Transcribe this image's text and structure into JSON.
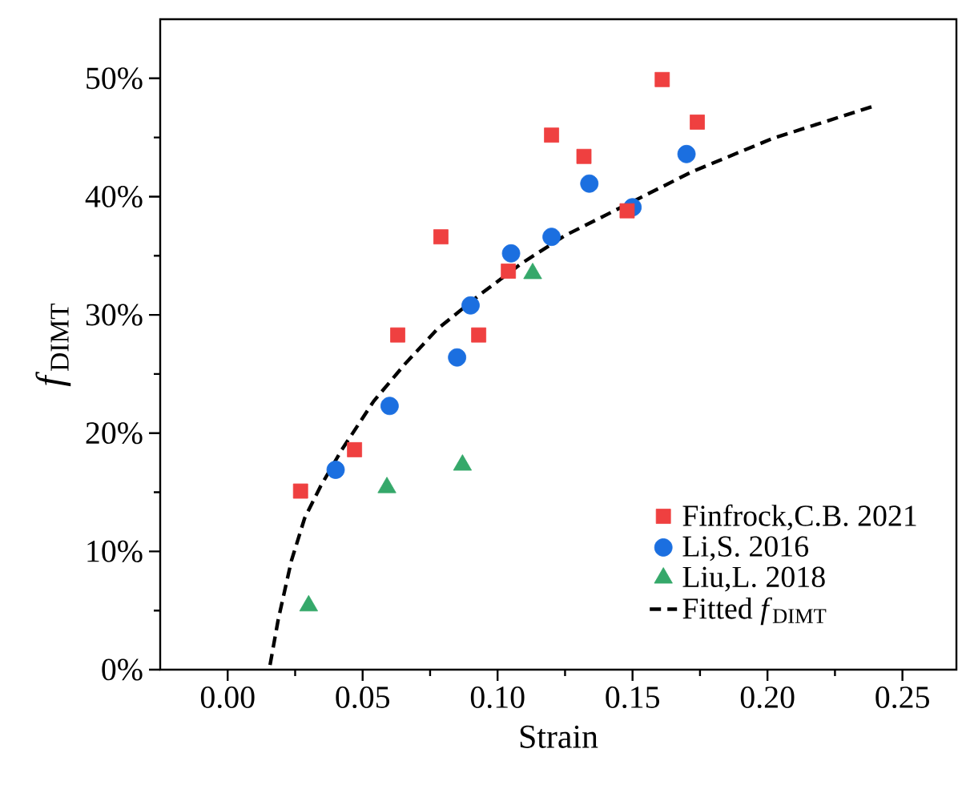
{
  "chart_data": {
    "type": "scatter",
    "xlabel": "Strain",
    "ylabel": "*f*$_{DIMT}$",
    "xlim": [
      -0.025,
      0.27
    ],
    "ylim": [
      0,
      55
    ],
    "xticks": [
      {
        "value": 0,
        "label": "0.00"
      },
      {
        "value": 0.025,
        "label": null
      },
      {
        "value": 0.05,
        "label": "0.05"
      },
      {
        "value": 0.075,
        "label": null
      },
      {
        "value": 0.1,
        "label": "0.10"
      },
      {
        "value": 0.125,
        "label": null
      },
      {
        "value": 0.15,
        "label": "0.15"
      },
      {
        "value": 0.175,
        "label": null
      },
      {
        "value": 0.2,
        "label": "0.20"
      },
      {
        "value": 0.225,
        "label": null
      },
      {
        "value": 0.25,
        "label": "0.25"
      }
    ],
    "yticks": [
      {
        "value": 0,
        "label": "0%"
      },
      {
        "value": 5,
        "label": null
      },
      {
        "value": 10,
        "label": "10%"
      },
      {
        "value": 15,
        "label": null
      },
      {
        "value": 20,
        "label": "20%"
      },
      {
        "value": 25,
        "label": null
      },
      {
        "value": 30,
        "label": "30%"
      },
      {
        "value": 35,
        "label": null
      },
      {
        "value": 40,
        "label": "40%"
      },
      {
        "value": 45,
        "label": null
      },
      {
        "value": 50,
        "label": "50%"
      }
    ],
    "legend": "bottom right",
    "series": [
      {
        "name": "Finfrock,C.B. 2021",
        "type": "scatter",
        "marker": "square",
        "color": "#ef4040",
        "x": [
          0.027,
          0.047,
          0.063,
          0.079,
          0.093,
          0.104,
          0.12,
          0.132,
          0.148,
          0.161,
          0.174
        ],
        "values": [
          15.1,
          18.6,
          28.3,
          36.6,
          28.3,
          33.7,
          45.2,
          43.4,
          38.8,
          49.9,
          46.3
        ]
      },
      {
        "name": "Li,S. 2016",
        "type": "scatter",
        "marker": "circle",
        "color": "#1b6fe0",
        "x": [
          0.04,
          0.06,
          0.085,
          0.09,
          0.105,
          0.12,
          0.134,
          0.15,
          0.17
        ],
        "values": [
          16.9,
          22.3,
          26.4,
          30.8,
          35.2,
          36.6,
          41.1,
          39.1,
          43.6
        ]
      },
      {
        "name": "Liu,L. 2018",
        "type": "scatter",
        "marker": "triangle",
        "color": "#35a86a",
        "x": [
          0.03,
          0.059,
          0.087,
          0.113
        ],
        "values": [
          5.4,
          15.4,
          17.3,
          33.5
        ]
      },
      {
        "name": "Fitted *f*$_{DIMT}$",
        "type": "line",
        "marker": "none",
        "line_style": "dashed",
        "color": "#000000",
        "x": [
          0.0157,
          0.0187,
          0.0236,
          0.0285,
          0.0344,
          0.0423,
          0.0541,
          0.0659,
          0.0777,
          0.0934,
          0.1092,
          0.1249,
          0.1485,
          0.172,
          0.2017,
          0.24
        ],
        "values": [
          0.4,
          4.2,
          9.2,
          12.8,
          15.5,
          18.6,
          22.7,
          25.9,
          28.8,
          31.7,
          34.4,
          36.7,
          39.4,
          42.1,
          44.9,
          47.7
        ]
      }
    ]
  }
}
